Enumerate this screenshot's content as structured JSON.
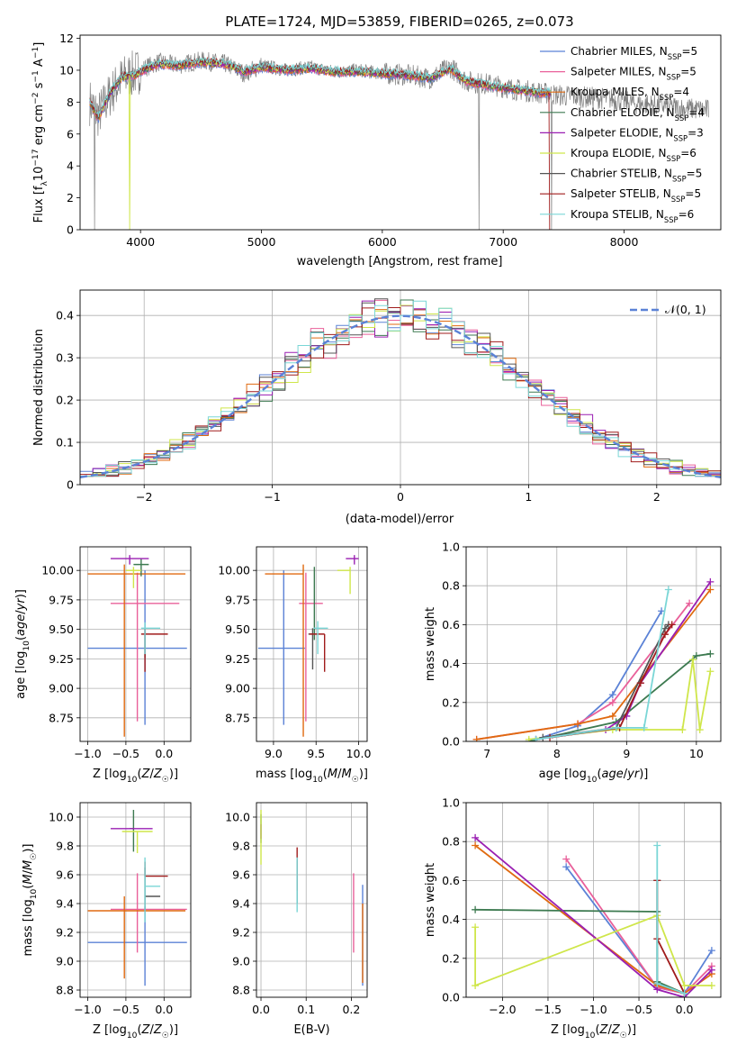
{
  "figure_title": "PLATE=1724, MJD=53859, FIBERID=0265, z=0.073",
  "palette": [
    "#5b82d6",
    "#e9609a",
    "#e06a10",
    "#3d7a50",
    "#9a1fb2",
    "#cfe64a",
    "#555555",
    "#a01c1c",
    "#7ad6d6"
  ],
  "chart_data": [
    {
      "id": "spectrum",
      "type": "line",
      "title": "PLATE=1724, MJD=53859, FIBERID=0265, z=0.073",
      "xlabel": "wavelength [Angstrom, rest frame]",
      "ylabel": "Flux [f_λ 10^-17 erg cm^-2 s^-1 A^-1]",
      "xlim": [
        3500,
        8800
      ],
      "ylim": [
        0,
        12.2
      ],
      "xticks": [
        4000,
        5000,
        6000,
        7000,
        8000
      ],
      "yticks": [
        0,
        2,
        4,
        6,
        8,
        10,
        12
      ],
      "grid": false,
      "legend_position": "upper-right",
      "legend": [
        "Chabrier MILES, N_SSP=5",
        "Salpeter MILES, N_SSP=5",
        "Kroupa MILES, N_SSP=4",
        "Chabrier ELODIE, N_SSP=4",
        "Salpeter ELODIE, N_SSP=3",
        "Kroupa ELODIE, N_SSP=6",
        "Chabrier STELIB, N_SSP=5",
        "Salpeter STELIB, N_SSP=5",
        "Kroupa STELIB, N_SSP=6"
      ],
      "data_series": {
        "name": "",
        "x": [
          3580,
          3650,
          3750,
          3850,
          3950,
          4050,
          4150,
          4300,
          4500,
          4700,
          4860,
          5000,
          5200,
          5400,
          5600,
          5800,
          6000,
          6200,
          6400,
          6563,
          6700,
          6900,
          7100,
          7300,
          7500,
          7700,
          7900,
          8100,
          8300,
          8500,
          8700
        ],
        "y": [
          8.0,
          7.2,
          8.5,
          9.5,
          9.8,
          10.2,
          10.5,
          10.3,
          10.6,
          10.4,
          9.8,
          10.3,
          10.0,
          10.2,
          9.9,
          10.0,
          9.8,
          9.7,
          9.5,
          10.2,
          9.3,
          9.1,
          8.8,
          8.6,
          8.4,
          8.3,
          8.2,
          7.9,
          7.8,
          7.6,
          7.5
        ]
      },
      "model_x": [
        3580,
        3650,
        3750,
        3850,
        3950,
        4050,
        4150,
        4300,
        4500,
        4700,
        4860,
        5000,
        5200,
        5400,
        5600,
        5800,
        6000,
        6200,
        6400,
        6563,
        6700,
        6900,
        7100,
        7300
      ],
      "model_y": [
        8.0,
        7.0,
        8.6,
        9.6,
        9.7,
        10.1,
        10.4,
        10.3,
        10.5,
        10.4,
        9.9,
        10.2,
        10.0,
        10.1,
        9.9,
        9.9,
        9.8,
        9.7,
        9.5,
        10.1,
        9.3,
        9.0,
        8.8,
        8.6
      ]
    },
    {
      "id": "residuals",
      "type": "histogram",
      "xlabel": "(data-model)/error",
      "ylabel": "Normed distribution",
      "xlim": [
        -2.5,
        2.5
      ],
      "ylim": [
        0,
        0.46
      ],
      "xticks": [
        -2,
        -1,
        0,
        1,
        2
      ],
      "yticks": [
        0.0,
        0.1,
        0.2,
        0.3,
        0.4
      ],
      "grid": true,
      "legend_position": "upper-right",
      "reference_label": "𝒩(0, 1)",
      "bin_width": 0.1
    },
    {
      "id": "age-vs-Z",
      "type": "errorbar",
      "xlabel": "Z [log10(Z/Z☉)]",
      "ylabel": "age [log10(age/yr)]",
      "xlim": [
        -1.1,
        0.35
      ],
      "ylim": [
        8.55,
        10.2
      ],
      "xticks": [
        -1.0,
        -0.5,
        0.0
      ],
      "yticks": [
        8.75,
        9.0,
        9.25,
        9.5,
        9.75,
        10.0
      ],
      "grid": true,
      "points": [
        {
          "x": -0.25,
          "y": 9.34,
          "xerr": [
            0.75,
            0.55
          ],
          "yerr": [
            0.65,
            0.66
          ]
        },
        {
          "x": -0.35,
          "y": 9.72,
          "xerr": [
            0.35,
            0.55
          ],
          "yerr": [
            1.0,
            0.26
          ]
        },
        {
          "x": -0.52,
          "y": 9.97,
          "xerr": [
            0.48,
            0.8
          ],
          "yerr": [
            1.38,
            0.08
          ]
        },
        {
          "x": -0.3,
          "y": 10.05,
          "xerr": [
            0.1,
            0.1
          ],
          "yerr": [
            0.1,
            0.05
          ]
        },
        {
          "x": -0.45,
          "y": 10.1,
          "xerr": [
            0.25,
            0.25
          ],
          "yerr": [
            0.05,
            0.03
          ]
        },
        {
          "x": -0.4,
          "y": 10.0,
          "xerr": [
            0.1,
            0.1
          ],
          "yerr": [
            0.15,
            0.03
          ]
        },
        {
          "x": -0.25,
          "y": 9.46,
          "xerr": [
            0.0,
            0.0
          ],
          "yerr": [
            0.2,
            0.05
          ]
        },
        {
          "x": -0.25,
          "y": 9.46,
          "xerr": [
            0.05,
            0.3
          ],
          "yerr": [
            0.32,
            0.05
          ]
        },
        {
          "x": -0.25,
          "y": 9.51,
          "xerr": [
            0.05,
            0.2
          ],
          "yerr": [
            0.22,
            0.05
          ]
        }
      ]
    },
    {
      "id": "age-vs-mass",
      "type": "errorbar",
      "xlabel": "mass [log10(M/M☉)]",
      "ylabel": "",
      "xlim": [
        8.8,
        10.1
      ],
      "ylim": [
        8.55,
        10.2
      ],
      "xticks": [
        9.0,
        9.5,
        10.0
      ],
      "yticks": [
        8.75,
        9.0,
        9.25,
        9.5,
        9.75,
        10.0
      ],
      "grid": true,
      "points": [
        {
          "x": 9.12,
          "y": 9.34,
          "xerr": [
            0.3,
            0.25
          ],
          "yerr": [
            0.65,
            0.66
          ]
        },
        {
          "x": 9.38,
          "y": 9.72,
          "xerr": [
            0.08,
            0.2
          ],
          "yerr": [
            1.0,
            0.26
          ]
        },
        {
          "x": 9.35,
          "y": 9.97,
          "xerr": [
            0.45,
            0.0
          ],
          "yerr": [
            1.38,
            0.08
          ]
        },
        {
          "x": 9.48,
          "y": 10.01,
          "xerr": [
            0.0,
            0.0
          ],
          "yerr": [
            0.6,
            0.02
          ]
        },
        {
          "x": 9.95,
          "y": 10.1,
          "xerr": [
            0.1,
            0.05
          ],
          "yerr": [
            0.05,
            0.03
          ]
        },
        {
          "x": 9.9,
          "y": 10.0,
          "xerr": [
            0.15,
            0.0
          ],
          "yerr": [
            0.2,
            0.03
          ]
        },
        {
          "x": 9.46,
          "y": 9.46,
          "xerr": [
            0.05,
            0.0
          ],
          "yerr": [
            0.3,
            0.05
          ]
        },
        {
          "x": 9.6,
          "y": 9.46,
          "xerr": [
            0.18,
            0.0
          ],
          "yerr": [
            0.32,
            0.0
          ]
        },
        {
          "x": 9.52,
          "y": 9.51,
          "xerr": [
            0.05,
            0.12
          ],
          "yerr": [
            0.22,
            0.06
          ]
        }
      ]
    },
    {
      "id": "weight-vs-age",
      "type": "line",
      "xlabel": "age [log10(age/yr)]",
      "ylabel": "mass weight",
      "xlim": [
        6.7,
        10.35
      ],
      "ylim": [
        0,
        1.0
      ],
      "xticks": [
        7,
        8,
        9,
        10
      ],
      "yticks": [
        0.0,
        0.2,
        0.4,
        0.6,
        0.8,
        1.0
      ],
      "grid": true,
      "series": [
        {
          "x": [
            7.7,
            8.3,
            8.8,
            9.5
          ],
          "y": [
            0.01,
            0.08,
            0.24,
            0.67
          ]
        },
        {
          "x": [
            6.85,
            8.3,
            8.8,
            9.9
          ],
          "y": [
            0.01,
            0.09,
            0.2,
            0.71
          ]
        },
        {
          "x": [
            6.85,
            8.3,
            8.8,
            10.2
          ],
          "y": [
            0.01,
            0.09,
            0.13,
            0.78
          ]
        },
        {
          "x": [
            7.6,
            8.85,
            10.0,
            10.2
          ],
          "y": [
            0.0,
            0.1,
            0.44,
            0.45
          ]
        },
        {
          "x": [
            7.7,
            8.7,
            9.0,
            9.2,
            10.2
          ],
          "y": [
            0.01,
            0.06,
            0.13,
            0.3,
            0.82
          ]
        },
        {
          "x": [
            7.6,
            8.8,
            9.8,
            9.95,
            10.05,
            10.2
          ],
          "y": [
            0.01,
            0.06,
            0.06,
            0.42,
            0.06,
            0.36
          ]
        },
        {
          "x": [
            7.8,
            8.85,
            9.55,
            9.6
          ],
          "y": [
            0.02,
            0.07,
            0.58,
            0.6
          ]
        },
        {
          "x": [
            7.9,
            8.9,
            9.2,
            9.55,
            9.65
          ],
          "y": [
            0.02,
            0.07,
            0.3,
            0.55,
            0.6
          ]
        },
        {
          "x": [
            7.7,
            8.85,
            9.25,
            9.6
          ],
          "y": [
            0.01,
            0.07,
            0.07,
            0.78
          ]
        }
      ]
    },
    {
      "id": "mass-vs-Z",
      "type": "errorbar",
      "xlabel": "Z [log10(Z/Z☉)]",
      "ylabel": "mass [log10(M/M☉)]",
      "xlim": [
        -1.1,
        0.35
      ],
      "ylim": [
        8.75,
        10.1
      ],
      "xticks": [
        -1.0,
        -0.5,
        0.0
      ],
      "yticks": [
        8.8,
        9.0,
        9.2,
        9.4,
        9.6,
        9.8,
        10.0
      ],
      "grid": true,
      "points": [
        {
          "x": -0.25,
          "y": 9.13,
          "xerr": [
            0.75,
            0.55
          ],
          "yerr": [
            0.3,
            0.25
          ]
        },
        {
          "x": -0.35,
          "y": 9.36,
          "xerr": [
            0.35,
            0.65
          ],
          "yerr": [
            0.3,
            0.25
          ]
        },
        {
          "x": -0.52,
          "y": 9.35,
          "xerr": [
            0.48,
            0.8
          ],
          "yerr": [
            0.47,
            0.1
          ]
        },
        {
          "x": -0.4,
          "y": 9.92,
          "xerr": [
            0.05,
            0.0
          ],
          "yerr": [
            0.16,
            0.13
          ]
        },
        {
          "x": -0.5,
          "y": 9.92,
          "xerr": [
            0.2,
            0.35
          ],
          "yerr": [
            0.0,
            0.0
          ]
        },
        {
          "x": -0.35,
          "y": 9.9,
          "xerr": [
            0.2,
            0.2
          ],
          "yerr": [
            0.15,
            0.0
          ]
        },
        {
          "x": -0.25,
          "y": 9.45,
          "xerr": [
            0.0,
            0.2
          ],
          "yerr": [
            0.1,
            0.2
          ]
        },
        {
          "x": -0.25,
          "y": 9.59,
          "xerr": [
            0.0,
            0.3
          ],
          "yerr": [
            0.0,
            0.1
          ]
        },
        {
          "x": -0.25,
          "y": 9.52,
          "xerr": [
            0.0,
            0.2
          ],
          "yerr": [
            0.25,
            0.2
          ]
        }
      ]
    },
    {
      "id": "mass-vs-ebv",
      "type": "errorbar",
      "xlabel": "E(B-V)",
      "ylabel": "",
      "xlim": [
        -0.01,
        0.235
      ],
      "ylim": [
        8.75,
        10.1
      ],
      "xticks": [
        0.0,
        0.1,
        0.2
      ],
      "yticks": [
        8.8,
        9.0,
        9.2,
        9.4,
        9.6,
        9.8,
        10.0
      ],
      "grid": true,
      "points": [
        {
          "x": 0.225,
          "y": 9.13,
          "xerr": [
            0,
            0
          ],
          "yerr": [
            0.3,
            0.4
          ]
        },
        {
          "x": 0.205,
          "y": 9.36,
          "xerr": [
            0,
            0
          ],
          "yerr": [
            0.3,
            0.25
          ]
        },
        {
          "x": 0.225,
          "y": 9.2,
          "xerr": [
            0,
            0
          ],
          "yerr": [
            0.35,
            0.2
          ]
        },
        {
          "x": 0.0,
          "y": 9.92,
          "xerr": [
            0,
            0
          ],
          "yerr": [
            0.1,
            0.1
          ]
        },
        {
          "x": 0.0,
          "y": 9.9,
          "xerr": [
            0,
            0
          ],
          "yerr": [
            0.05,
            0.05
          ]
        },
        {
          "x": 0.0,
          "y": 9.85,
          "xerr": [
            0,
            0
          ],
          "yerr": [
            0.18,
            0.2
          ]
        },
        {
          "x": 0.08,
          "y": 9.55,
          "xerr": [
            0,
            0
          ],
          "yerr": [
            0.15,
            0.15
          ]
        },
        {
          "x": 0.08,
          "y": 9.59,
          "xerr": [
            0,
            0
          ],
          "yerr": [
            0.1,
            0.2
          ]
        },
        {
          "x": 0.08,
          "y": 9.52,
          "xerr": [
            0,
            0
          ],
          "yerr": [
            0.18,
            0.2
          ]
        }
      ]
    },
    {
      "id": "weight-vs-Z",
      "type": "line",
      "xlabel": "Z [log10(Z/Z☉)]",
      "ylabel": "mass weight",
      "xlim": [
        -2.4,
        0.4
      ],
      "ylim": [
        0,
        1.0
      ],
      "xticks": [
        -2.0,
        -1.5,
        -1.0,
        -0.5,
        0.0
      ],
      "yticks": [
        0.0,
        0.2,
        0.4,
        0.6,
        0.8,
        1.0
      ],
      "grid": true,
      "series": [
        {
          "x": [
            -1.3,
            -0.3,
            0.0,
            0.3
          ],
          "y": [
            0.67,
            0.05,
            0.02,
            0.24
          ]
        },
        {
          "x": [
            -1.3,
            -0.3,
            0.0,
            0.3
          ],
          "y": [
            0.71,
            0.05,
            0.02,
            0.16
          ]
        },
        {
          "x": [
            -2.3,
            -0.3,
            0.0,
            0.3
          ],
          "y": [
            0.78,
            0.06,
            0.02,
            0.12
          ]
        },
        {
          "x": [
            -2.3,
            -0.3,
            -0.3,
            0.0
          ],
          "y": [
            0.45,
            0.44,
            0.08,
            0.02
          ]
        },
        {
          "x": [
            -2.3,
            -0.3,
            0.0,
            0.3
          ],
          "y": [
            0.82,
            0.04,
            0.0,
            0.14
          ]
        },
        {
          "x": [
            -2.3,
            -2.3,
            -0.3,
            0.0,
            0.3
          ],
          "y": [
            0.36,
            0.06,
            0.42,
            0.06,
            0.06
          ]
        },
        {
          "x": [
            -0.3,
            -0.3,
            0.0
          ],
          "y": [
            0.6,
            0.07,
            0.02
          ]
        },
        {
          "x": [
            -0.3,
            -0.3,
            0.0
          ],
          "y": [
            0.6,
            0.3,
            0.02
          ]
        },
        {
          "x": [
            -0.3,
            -0.3,
            0.0
          ],
          "y": [
            0.78,
            0.07,
            0.02
          ]
        }
      ]
    }
  ],
  "axis_labels": {
    "spectrum_y": [
      "Flux [f",
      "λ",
      "10",
      "−17",
      " erg cm",
      "−2",
      " s",
      "−1",
      " A",
      "−1",
      "]"
    ],
    "z_prefix": "Z [log",
    "z_sub": "10",
    "z_body": "(Z/Z",
    "z_sun": "☉",
    "z_close": ")]",
    "age_prefix": "age  [log",
    "age_body": "(age/yr)]",
    "mass_prefix": "mass [log",
    "mass_body": "(M/M",
    "mass_close": ")]",
    "ssp_sub": "SSP"
  }
}
